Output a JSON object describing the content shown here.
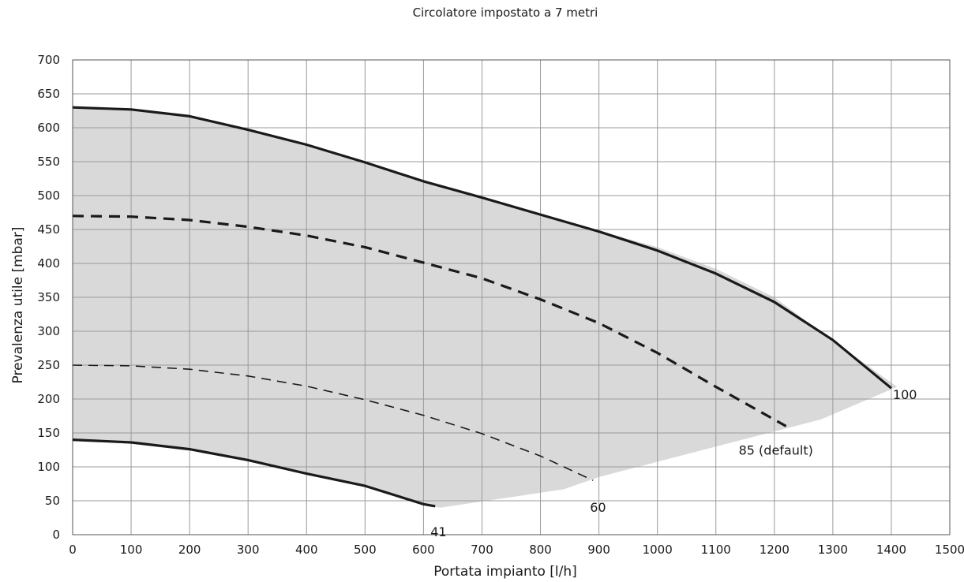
{
  "chart_data": {
    "type": "line",
    "title": "Circolatore impostato a 7 metri",
    "xlabel": "Portata impianto [l/h]",
    "ylabel": "Prevalenza utile [mbar]",
    "xlim": [
      0,
      1500
    ],
    "ylim": [
      0,
      700
    ],
    "xticks": [
      0,
      100,
      200,
      300,
      400,
      500,
      600,
      700,
      800,
      900,
      1000,
      1100,
      1200,
      1300,
      1400,
      1500
    ],
    "yticks": [
      0,
      50,
      100,
      150,
      200,
      250,
      300,
      350,
      400,
      450,
      500,
      550,
      600,
      650,
      700
    ],
    "grid": true,
    "shaded_region": {
      "color": "#d9d9d9",
      "points": [
        [
          0,
          630
        ],
        [
          100,
          627
        ],
        [
          200,
          618
        ],
        [
          300,
          598
        ],
        [
          400,
          573
        ],
        [
          500,
          548
        ],
        [
          600,
          522
        ],
        [
          700,
          497
        ],
        [
          800,
          472
        ],
        [
          900,
          448
        ],
        [
          1000,
          424
        ],
        [
          1100,
          392
        ],
        [
          1200,
          350
        ],
        [
          1300,
          286
        ],
        [
          1410,
          218
        ],
        [
          1280,
          170
        ],
        [
          1100,
          130
        ],
        [
          900,
          85
        ],
        [
          840,
          67
        ],
        [
          630,
          40
        ],
        [
          610,
          42
        ],
        [
          500,
          72
        ],
        [
          400,
          90
        ],
        [
          300,
          109
        ],
        [
          200,
          125
        ],
        [
          100,
          135
        ],
        [
          0,
          140
        ]
      ]
    },
    "series": [
      {
        "name": "100",
        "label": "100",
        "style": "solid",
        "width": 3.2,
        "x": [
          0,
          100,
          200,
          300,
          400,
          500,
          600,
          700,
          800,
          900,
          1000,
          1100,
          1200,
          1300,
          1400
        ],
        "y": [
          630,
          627,
          617,
          597,
          575,
          549,
          521,
          497,
          472,
          447,
          419,
          385,
          343,
          287,
          216
        ]
      },
      {
        "name": "85 (default)",
        "label": "85 (default)",
        "style": "dashed",
        "width": 3.2,
        "x": [
          0,
          100,
          200,
          300,
          400,
          500,
          600,
          700,
          800,
          900,
          1000,
          1100,
          1220
        ],
        "y": [
          470,
          469,
          464,
          454,
          441,
          424,
          401,
          378,
          347,
          312,
          268,
          218,
          160
        ]
      },
      {
        "name": "60",
        "label": "60",
        "style": "dashed",
        "width": 1.6,
        "x": [
          0,
          100,
          200,
          300,
          400,
          500,
          600,
          700,
          800,
          890
        ],
        "y": [
          250,
          249,
          244,
          234,
          219,
          199,
          176,
          149,
          116,
          80
        ]
      },
      {
        "name": "41",
        "label": "41",
        "style": "solid",
        "width": 3.2,
        "x": [
          0,
          100,
          200,
          300,
          400,
          500,
          600,
          620
        ],
        "y": [
          140,
          136,
          126,
          110,
          90,
          72,
          45,
          42
        ]
      }
    ],
    "line_color": "#1a1a1a",
    "grid_color": "#9a9a9a"
  }
}
